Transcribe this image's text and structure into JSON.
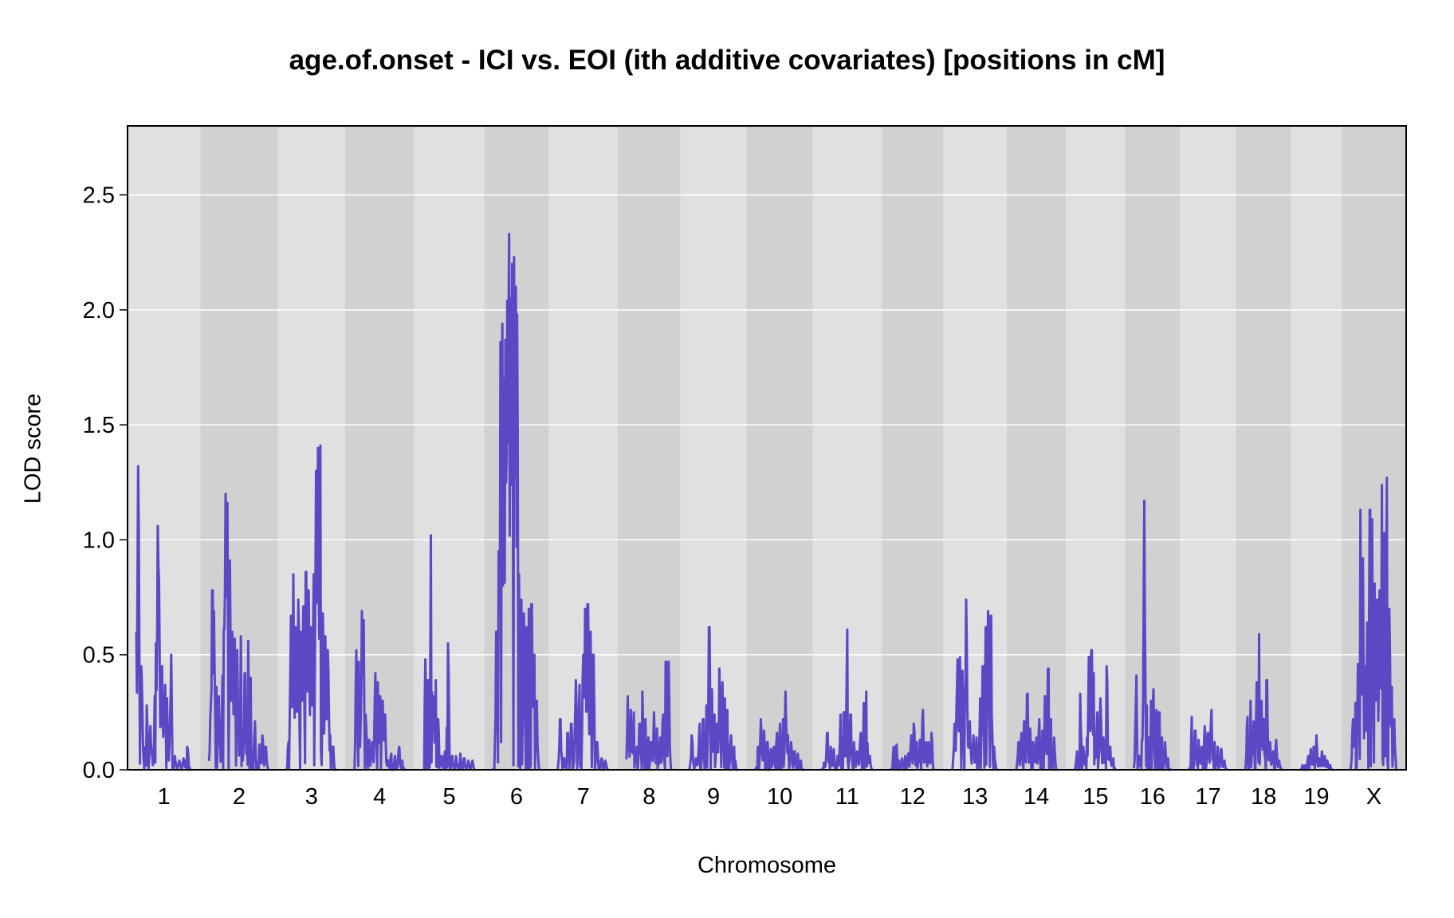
{
  "chart_data": {
    "type": "line",
    "title": "age.of.onset - ICI vs. EOI (ith additive covariates) [positions in cM]",
    "xlabel": "Chromosome",
    "ylabel": "LOD score",
    "ylim": [
      0,
      2.8
    ],
    "yticks": [
      "0.0",
      "0.5",
      "1.0",
      "1.5",
      "2.0",
      "2.5"
    ],
    "grid": true,
    "colors": {
      "line": "#5a48c4",
      "band_light": "#e0e0e0",
      "band_dark": "#d1d1d1",
      "gridline": "#ffffff"
    },
    "chromosomes": [
      {
        "label": "1",
        "length": 96.5,
        "peaks": [
          [
            0,
            0.6
          ],
          [
            2,
            1.32
          ],
          [
            3,
            0.53
          ],
          [
            5,
            0.45
          ],
          [
            10,
            0.28
          ],
          [
            14,
            0.19
          ],
          [
            19,
            0.55
          ],
          [
            21,
            1.06
          ],
          [
            22,
            0.82
          ],
          [
            25,
            0.45
          ],
          [
            28,
            0.37
          ],
          [
            30,
            0.31
          ],
          [
            34,
            0.5
          ],
          [
            38,
            0.06
          ],
          [
            42,
            0.04
          ],
          [
            46,
            0.05
          ],
          [
            50,
            0.1
          ]
        ]
      },
      {
        "label": "2",
        "length": 105,
        "peaks": [
          [
            2,
            0.28
          ],
          [
            4,
            0.78
          ],
          [
            6,
            0.69
          ],
          [
            9,
            0.36
          ],
          [
            12,
            0.32
          ],
          [
            16,
            0.41
          ],
          [
            18,
            0.61
          ],
          [
            20,
            1.2
          ],
          [
            22,
            1.16
          ],
          [
            25,
            0.91
          ],
          [
            28,
            0.6
          ],
          [
            31,
            0.57
          ],
          [
            34,
            0.52
          ],
          [
            38,
            0.58
          ],
          [
            43,
            0.42
          ],
          [
            47,
            0.56
          ],
          [
            50,
            0.4
          ],
          [
            55,
            0.21
          ],
          [
            60,
            0.11
          ],
          [
            64,
            0.15
          ],
          [
            68,
            0.1
          ]
        ]
      },
      {
        "label": "3",
        "length": 87,
        "peaks": [
          [
            2,
            0.12
          ],
          [
            5,
            0.67
          ],
          [
            8,
            0.85
          ],
          [
            11,
            0.62
          ],
          [
            14,
            0.74
          ],
          [
            17,
            0.6
          ],
          [
            20,
            0.71
          ],
          [
            23,
            0.86
          ],
          [
            26,
            0.78
          ],
          [
            29,
            0.62
          ],
          [
            32,
            0.85
          ],
          [
            35,
            1.3
          ],
          [
            37,
            1.4
          ],
          [
            40,
            1.41
          ],
          [
            43,
            0.68
          ],
          [
            46,
            0.58
          ],
          [
            49,
            0.52
          ],
          [
            52,
            0.15
          ],
          [
            55,
            0.1
          ]
        ]
      },
      {
        "label": "4",
        "length": 90,
        "peaks": [
          [
            3,
            0.52
          ],
          [
            6,
            0.47
          ],
          [
            10,
            0.69
          ],
          [
            12,
            0.65
          ],
          [
            15,
            0.24
          ],
          [
            19,
            0.13
          ],
          [
            23,
            0.12
          ],
          [
            27,
            0.42
          ],
          [
            30,
            0.38
          ],
          [
            33,
            0.32
          ],
          [
            36,
            0.3
          ],
          [
            39,
            0.24
          ],
          [
            43,
            0.04
          ],
          [
            47,
            0.07
          ],
          [
            52,
            0.06
          ],
          [
            57,
            0.1
          ],
          [
            61,
            0.04
          ]
        ]
      },
      {
        "label": "5",
        "length": 92,
        "peaks": [
          [
            3,
            0.48
          ],
          [
            6,
            0.39
          ],
          [
            10,
            1.02
          ],
          [
            13,
            0.32
          ],
          [
            16,
            0.39
          ],
          [
            19,
            0.22
          ],
          [
            23,
            0.06
          ],
          [
            27,
            0.08
          ],
          [
            31,
            0.55
          ],
          [
            36,
            0.06
          ],
          [
            41,
            0.06
          ],
          [
            46,
            0.07
          ],
          [
            51,
            0.05
          ],
          [
            56,
            0.04
          ],
          [
            61,
            0.04
          ]
        ]
      },
      {
        "label": "6",
        "length": 82,
        "peaks": [
          [
            4,
            0.6
          ],
          [
            7,
            0.95
          ],
          [
            9,
            1.86
          ],
          [
            11,
            1.94
          ],
          [
            13,
            1.7
          ],
          [
            15,
            1.87
          ],
          [
            17,
            2.04
          ],
          [
            19,
            2.33
          ],
          [
            21,
            2.05
          ],
          [
            23,
            2.2
          ],
          [
            25,
            2.23
          ],
          [
            27,
            2.1
          ],
          [
            29,
            1.98
          ],
          [
            31,
            0.85
          ],
          [
            34,
            0.74
          ],
          [
            37,
            0.68
          ],
          [
            40,
            0.62
          ],
          [
            43,
            0.7
          ],
          [
            46,
            0.72
          ],
          [
            49,
            0.5
          ],
          [
            52,
            0.3
          ]
        ]
      },
      {
        "label": "7",
        "length": 90,
        "peaks": [
          [
            3,
            0.22
          ],
          [
            7,
            0.05
          ],
          [
            11,
            0.16
          ],
          [
            15,
            0.2
          ],
          [
            20,
            0.39
          ],
          [
            24,
            0.37
          ],
          [
            28,
            0.5
          ],
          [
            30,
            0.7
          ],
          [
            33,
            0.72
          ],
          [
            36,
            0.6
          ],
          [
            39,
            0.5
          ],
          [
            43,
            0.12
          ],
          [
            48,
            0.05
          ],
          [
            52,
            0.04
          ]
        ]
      },
      {
        "label": "8",
        "length": 79,
        "peaks": [
          [
            2,
            0.32
          ],
          [
            6,
            0.26
          ],
          [
            10,
            0.25
          ],
          [
            14,
            0.1
          ],
          [
            18,
            0.2
          ],
          [
            22,
            0.34
          ],
          [
            26,
            0.22
          ],
          [
            30,
            0.14
          ],
          [
            34,
            0.12
          ],
          [
            38,
            0.25
          ],
          [
            42,
            0.18
          ],
          [
            46,
            0.14
          ],
          [
            50,
            0.24
          ],
          [
            54,
            0.47
          ],
          [
            58,
            0.47
          ]
        ]
      },
      {
        "label": "9",
        "length": 85,
        "peaks": [
          [
            3,
            0.15
          ],
          [
            8,
            0.05
          ],
          [
            12,
            0.2
          ],
          [
            16,
            0.22
          ],
          [
            20,
            0.28
          ],
          [
            23,
            0.62
          ],
          [
            26,
            0.35
          ],
          [
            29,
            0.24
          ],
          [
            32,
            0.2
          ],
          [
            35,
            0.44
          ],
          [
            38,
            0.38
          ],
          [
            41,
            0.31
          ],
          [
            44,
            0.26
          ],
          [
            48,
            0.15
          ],
          [
            52,
            0.1
          ]
        ]
      },
      {
        "label": "10",
        "length": 85,
        "peaks": [
          [
            3,
            0.1
          ],
          [
            7,
            0.22
          ],
          [
            11,
            0.17
          ],
          [
            15,
            0.12
          ],
          [
            19,
            0.09
          ],
          [
            23,
            0.1
          ],
          [
            27,
            0.16
          ],
          [
            31,
            0.2
          ],
          [
            35,
            0.22
          ],
          [
            38,
            0.34
          ],
          [
            41,
            0.15
          ],
          [
            45,
            0.12
          ],
          [
            49,
            0.08
          ],
          [
            53,
            0.07
          ],
          [
            57,
            0.04
          ]
        ]
      },
      {
        "label": "11",
        "length": 90,
        "peaks": [
          [
            3,
            0.03
          ],
          [
            7,
            0.16
          ],
          [
            11,
            0.1
          ],
          [
            15,
            0.09
          ],
          [
            19,
            0.06
          ],
          [
            23,
            0.24
          ],
          [
            27,
            0.25
          ],
          [
            31,
            0.61
          ],
          [
            35,
            0.24
          ],
          [
            39,
            0.12
          ],
          [
            43,
            0.08
          ],
          [
            47,
            0.16
          ],
          [
            51,
            0.29
          ],
          [
            54,
            0.34
          ],
          [
            58,
            0.06
          ]
        ]
      },
      {
        "label": "12",
        "length": 77,
        "peaks": [
          [
            4,
            0.1
          ],
          [
            8,
            0.11
          ],
          [
            12,
            0.04
          ],
          [
            16,
            0.05
          ],
          [
            20,
            0.06
          ],
          [
            24,
            0.07
          ],
          [
            28,
            0.15
          ],
          [
            32,
            0.2
          ],
          [
            36,
            0.12
          ],
          [
            40,
            0.13
          ],
          [
            44,
            0.26
          ],
          [
            48,
            0.12
          ],
          [
            52,
            0.12
          ],
          [
            56,
            0.16
          ]
        ]
      },
      {
        "label": "13",
        "length": 80,
        "peaks": [
          [
            3,
            0.2
          ],
          [
            6,
            0.48
          ],
          [
            9,
            0.49
          ],
          [
            12,
            0.43
          ],
          [
            16,
            0.74
          ],
          [
            20,
            0.21
          ],
          [
            24,
            0.15
          ],
          [
            28,
            0.14
          ],
          [
            32,
            0.31
          ],
          [
            35,
            0.45
          ],
          [
            38,
            0.62
          ],
          [
            41,
            0.69
          ],
          [
            44,
            0.67
          ],
          [
            48,
            0.1
          ]
        ]
      },
      {
        "label": "14",
        "length": 73,
        "peaks": [
          [
            4,
            0.12
          ],
          [
            8,
            0.16
          ],
          [
            12,
            0.21
          ],
          [
            16,
            0.33
          ],
          [
            20,
            0.18
          ],
          [
            24,
            0.12
          ],
          [
            28,
            0.14
          ],
          [
            32,
            0.22
          ],
          [
            36,
            0.17
          ],
          [
            40,
            0.32
          ],
          [
            44,
            0.44
          ],
          [
            48,
            0.22
          ],
          [
            52,
            0.14
          ]
        ]
      },
      {
        "label": "15",
        "length": 73,
        "peaks": [
          [
            3,
            0.08
          ],
          [
            7,
            0.33
          ],
          [
            11,
            0.1
          ],
          [
            15,
            0.14
          ],
          [
            18,
            0.49
          ],
          [
            21,
            0.52
          ],
          [
            24,
            0.42
          ],
          [
            28,
            0.25
          ],
          [
            32,
            0.31
          ],
          [
            36,
            0.14
          ],
          [
            40,
            0.45
          ],
          [
            44,
            0.1
          ],
          [
            48,
            0.05
          ]
        ]
      },
      {
        "label": "16",
        "length": 65,
        "peaks": [
          [
            3,
            0.41
          ],
          [
            7,
            0.06
          ],
          [
            11,
            0.13
          ],
          [
            14,
            1.17
          ],
          [
            17,
            0.28
          ],
          [
            20,
            0.14
          ],
          [
            23,
            0.3
          ],
          [
            26,
            0.35
          ],
          [
            30,
            0.26
          ],
          [
            34,
            0.25
          ],
          [
            38,
            0.14
          ],
          [
            42,
            0.12
          ],
          [
            46,
            0.05
          ]
        ]
      },
      {
        "label": "17",
        "length": 68,
        "peaks": [
          [
            4,
            0.23
          ],
          [
            8,
            0.17
          ],
          [
            12,
            0.13
          ],
          [
            16,
            0.1
          ],
          [
            20,
            0.19
          ],
          [
            24,
            0.16
          ],
          [
            28,
            0.26
          ],
          [
            32,
            0.12
          ],
          [
            36,
            0.1
          ],
          [
            40,
            0.09
          ],
          [
            44,
            0.04
          ]
        ]
      },
      {
        "label": "18",
        "length": 65,
        "peaks": [
          [
            3,
            0.23
          ],
          [
            7,
            0.3
          ],
          [
            11,
            0.21
          ],
          [
            15,
            0.38
          ],
          [
            18,
            0.59
          ],
          [
            21,
            0.3
          ],
          [
            24,
            0.22
          ],
          [
            28,
            0.39
          ],
          [
            32,
            0.12
          ],
          [
            36,
            0.08
          ],
          [
            40,
            0.13
          ],
          [
            44,
            0.04
          ]
        ]
      },
      {
        "label": "19",
        "length": 58,
        "peaks": [
          [
            4,
            0.02
          ],
          [
            8,
            0.02
          ],
          [
            12,
            0.06
          ],
          [
            16,
            0.09
          ],
          [
            20,
            0.1
          ],
          [
            24,
            0.15
          ],
          [
            28,
            0.05
          ],
          [
            32,
            0.08
          ],
          [
            36,
            0.06
          ],
          [
            40,
            0.04
          ],
          [
            44,
            0.02
          ]
        ]
      },
      {
        "label": "X",
        "length": 82,
        "peaks": [
          [
            3,
            0.22
          ],
          [
            6,
            0.29
          ],
          [
            9,
            0.46
          ],
          [
            12,
            1.13
          ],
          [
            15,
            0.92
          ],
          [
            18,
            0.45
          ],
          [
            21,
            0.64
          ],
          [
            24,
            1.13
          ],
          [
            27,
            1.09
          ],
          [
            30,
            0.81
          ],
          [
            33,
            0.74
          ],
          [
            36,
            0.78
          ],
          [
            39,
            1.24
          ],
          [
            42,
            1.03
          ],
          [
            45,
            1.27
          ],
          [
            48,
            0.7
          ],
          [
            51,
            0.36
          ],
          [
            54,
            0.22
          ]
        ]
      }
    ]
  }
}
